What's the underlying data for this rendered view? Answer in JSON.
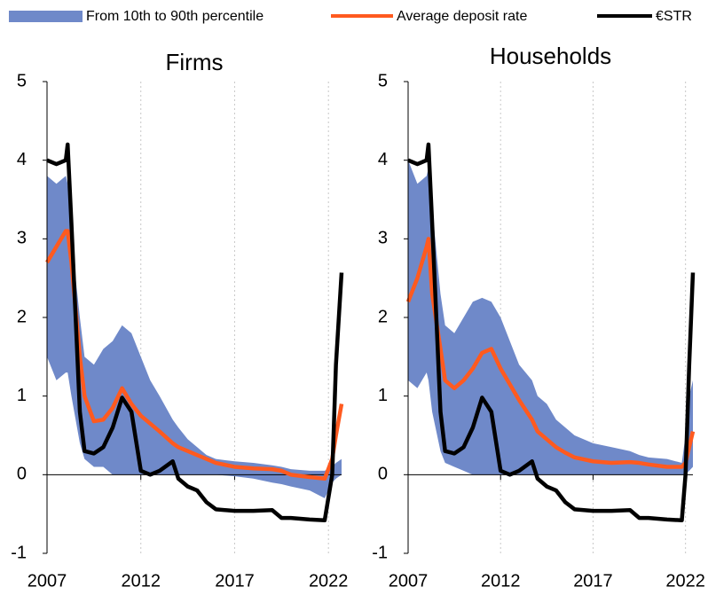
{
  "chart_data": [
    {
      "type": "line",
      "title": "Firms",
      "x": [
        2007,
        2007.5,
        2008,
        2008.1,
        2008.3,
        2008.75,
        2009,
        2009.5,
        2010,
        2010.5,
        2011,
        2011.5,
        2012,
        2012.5,
        2013,
        2013.7,
        2014,
        2014.5,
        2015,
        2015.5,
        2016,
        2017,
        2018,
        2019,
        2019.5,
        2020,
        2021,
        2021.8,
        2022.2,
        2022.4,
        2022.7
      ],
      "xlim": [
        2007,
        2022.7
      ],
      "xticks": [
        2007,
        2012,
        2017,
        2022
      ],
      "ylim": [
        -1,
        5
      ],
      "yticks": [
        -1,
        0,
        1,
        2,
        3,
        4,
        5
      ],
      "xgrid": true,
      "legend": "top",
      "series": [
        {
          "name": "From 10th to 90th percentile",
          "color": "#6f89c9",
          "kind": "band",
          "lower": [
            1.5,
            1.2,
            1.3,
            1.3,
            1.0,
            0.4,
            0.2,
            0.1,
            0.1,
            0.0,
            0.0,
            0.0,
            0.0,
            0.0,
            0.0,
            0.0,
            0.0,
            0.0,
            0.0,
            0.0,
            0.0,
            -0.02,
            -0.05,
            -0.1,
            -0.12,
            -0.15,
            -0.2,
            -0.3,
            -0.1,
            -0.05,
            0.0
          ],
          "upper": [
            3.8,
            3.7,
            3.8,
            3.7,
            3.0,
            2.0,
            1.5,
            1.4,
            1.6,
            1.7,
            1.9,
            1.8,
            1.5,
            1.2,
            1.0,
            0.7,
            0.6,
            0.45,
            0.35,
            0.25,
            0.2,
            0.17,
            0.15,
            0.12,
            0.1,
            0.07,
            0.05,
            0.05,
            0.1,
            0.15,
            0.2
          ]
        },
        {
          "name": "Average deposit rate",
          "color": "#ff5a1f",
          "kind": "line",
          "values": [
            2.7,
            2.9,
            3.1,
            3.1,
            2.7,
            1.5,
            1.0,
            0.68,
            0.7,
            0.85,
            1.1,
            0.9,
            0.75,
            0.65,
            0.55,
            0.4,
            0.35,
            0.3,
            0.25,
            0.2,
            0.15,
            0.1,
            0.08,
            0.07,
            0.05,
            0.0,
            -0.03,
            -0.05,
            0.2,
            0.5,
            0.9
          ]
        },
        {
          "name": "€STR",
          "color": "#000000",
          "kind": "line",
          "values": [
            4.0,
            3.95,
            4.0,
            4.2,
            3.2,
            0.8,
            0.3,
            0.27,
            0.35,
            0.6,
            0.98,
            0.8,
            0.05,
            0.0,
            0.05,
            0.17,
            -0.05,
            -0.15,
            -0.2,
            -0.35,
            -0.44,
            -0.46,
            -0.46,
            -0.45,
            -0.55,
            -0.55,
            -0.57,
            -0.58,
            0.0,
            1.4,
            2.57
          ]
        }
      ]
    },
    {
      "type": "line",
      "title": "Households",
      "x": [
        2007,
        2007.5,
        2008,
        2008.1,
        2008.3,
        2008.75,
        2009,
        2009.5,
        2010,
        2010.5,
        2011,
        2011.5,
        2012,
        2012.5,
        2013,
        2013.7,
        2014,
        2014.5,
        2015,
        2015.5,
        2016,
        2017,
        2018,
        2019,
        2019.5,
        2020,
        2021,
        2021.8,
        2022.0,
        2022.2,
        2022.4
      ],
      "xlim": [
        2007,
        2022.4
      ],
      "xticks": [
        2007,
        2012,
        2017,
        2022
      ],
      "ylim": [
        -1,
        5
      ],
      "yticks": [
        -1,
        0,
        1,
        2,
        3,
        4,
        5
      ],
      "xgrid": true,
      "series": [
        {
          "color": "#6f89c9",
          "kind": "band",
          "lower": [
            1.2,
            1.1,
            1.3,
            1.2,
            0.8,
            0.3,
            0.15,
            0.1,
            0.05,
            0.0,
            0.0,
            0.0,
            0.0,
            0.0,
            0.0,
            0.0,
            0.0,
            0.0,
            0.0,
            0.0,
            0.0,
            0.0,
            0.0,
            0.0,
            0.0,
            0.0,
            0.0,
            0.0,
            0.0,
            0.05,
            0.1
          ],
          "upper": [
            4.0,
            3.7,
            3.8,
            3.9,
            3.4,
            2.3,
            1.9,
            1.8,
            2.0,
            2.2,
            2.25,
            2.2,
            2.0,
            1.7,
            1.4,
            1.2,
            1.0,
            0.9,
            0.7,
            0.6,
            0.5,
            0.4,
            0.35,
            0.3,
            0.25,
            0.22,
            0.2,
            0.15,
            0.5,
            1.0,
            1.2
          ]
        },
        {
          "color": "#ff5a1f",
          "kind": "line",
          "values": [
            2.2,
            2.5,
            2.9,
            3.0,
            2.3,
            1.6,
            1.2,
            1.1,
            1.2,
            1.35,
            1.55,
            1.6,
            1.35,
            1.15,
            0.95,
            0.7,
            0.55,
            0.45,
            0.35,
            0.28,
            0.22,
            0.17,
            0.15,
            0.16,
            0.15,
            0.13,
            0.1,
            0.1,
            0.15,
            0.35,
            0.55
          ]
        },
        {
          "color": "#000000",
          "kind": "line",
          "values": [
            4.0,
            3.95,
            4.0,
            4.2,
            3.2,
            0.8,
            0.3,
            0.27,
            0.35,
            0.6,
            0.98,
            0.8,
            0.05,
            0.0,
            0.05,
            0.17,
            -0.05,
            -0.15,
            -0.2,
            -0.35,
            -0.44,
            -0.46,
            -0.46,
            -0.45,
            -0.55,
            -0.55,
            -0.57,
            -0.58,
            0.0,
            1.4,
            2.57
          ]
        }
      ]
    }
  ]
}
